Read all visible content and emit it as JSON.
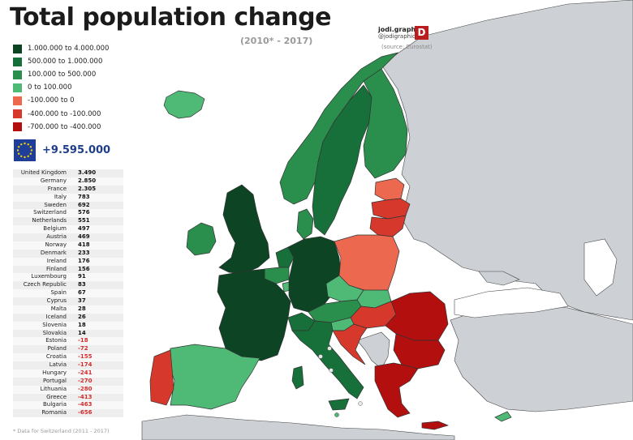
{
  "title": "Total population change",
  "subtitle": "(2010* - 2017)",
  "brand": {
    "name": "jodi.graphics",
    "handle": "@jodigraphics15",
    "logo_letter": "D"
  },
  "source": "(source: Eurostat)",
  "legend": [
    {
      "label": "1.000.000 to 4.000.000",
      "color": "#0c4424"
    },
    {
      "label": "500.000 to 1.000.000",
      "color": "#17703a"
    },
    {
      "label": "100.000 to 500.000",
      "color": "#2a8f4c"
    },
    {
      "label": "0 to 100.000",
      "color": "#4fba76"
    },
    {
      "label": "-100.000 to 0",
      "color": "#ec684f"
    },
    {
      "label": "-400.000 to -100.000",
      "color": "#d6382c"
    },
    {
      "label": "-700.000 to -400.000",
      "color": "#b30f0f"
    }
  ],
  "eu_total": "+9.595.000",
  "countries": [
    {
      "name": "United Kingdom",
      "value": "3.490"
    },
    {
      "name": "Germany",
      "value": "2.850"
    },
    {
      "name": "France",
      "value": "2.305"
    },
    {
      "name": "Italy",
      "value": "783"
    },
    {
      "name": "Sweden",
      "value": "692"
    },
    {
      "name": "Switzerland",
      "value": "576"
    },
    {
      "name": "Netherlands",
      "value": "551"
    },
    {
      "name": "Belgium",
      "value": "497"
    },
    {
      "name": "Austria",
      "value": "469"
    },
    {
      "name": "Norway",
      "value": "418"
    },
    {
      "name": "Denmark",
      "value": "233"
    },
    {
      "name": "Ireland",
      "value": "176"
    },
    {
      "name": "Finland",
      "value": "156"
    },
    {
      "name": "Luxembourg",
      "value": "91"
    },
    {
      "name": "Czech Republic",
      "value": "83"
    },
    {
      "name": "Spain",
      "value": "67"
    },
    {
      "name": "Cyprus",
      "value": "37"
    },
    {
      "name": "Malta",
      "value": "28"
    },
    {
      "name": "Iceland",
      "value": "26"
    },
    {
      "name": "Slovenia",
      "value": "18"
    },
    {
      "name": "Slovakia",
      "value": "14"
    },
    {
      "name": "Estonia",
      "value": "-18"
    },
    {
      "name": "Poland",
      "value": "-72"
    },
    {
      "name": "Croatia",
      "value": "-155"
    },
    {
      "name": "Latvia",
      "value": "-174"
    },
    {
      "name": "Hungary",
      "value": "-241"
    },
    {
      "name": "Portugal",
      "value": "-270"
    },
    {
      "name": "Lithuania",
      "value": "-280"
    },
    {
      "name": "Greece",
      "value": "-413"
    },
    {
      "name": "Bulgaria",
      "value": "-463"
    },
    {
      "name": "Romania",
      "value": "-656"
    }
  ],
  "footnote": "* Data for Switzerland (2011 - 2017)",
  "map_colors": {
    "land_other": "#cdd0d4",
    "border": "#444444"
  }
}
